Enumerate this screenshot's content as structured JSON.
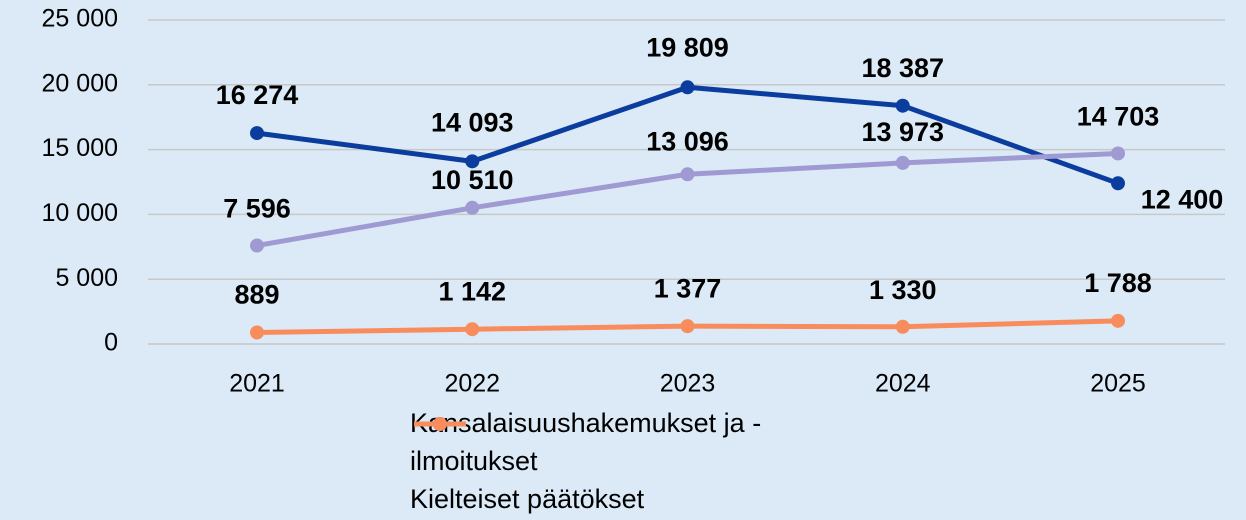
{
  "chart_data": {
    "type": "line",
    "categories": [
      "2021",
      "2022",
      "2023",
      "2024",
      "2025"
    ],
    "series": [
      {
        "name": "Kansalaisuushakemukset ja -ilmoitukset",
        "color": "#0b3d9e",
        "values": [
          16274,
          14093,
          19809,
          18387,
          12400
        ],
        "value_labels": [
          "16 274",
          "14 093",
          "19 809",
          "18 387",
          "12 400"
        ]
      },
      {
        "color": "#a09ad3",
        "values": [
          7596,
          10510,
          13096,
          13973,
          14703
        ],
        "value_labels": [
          "7 596",
          "10 510",
          "13 096",
          "13 973",
          "14 703"
        ]
      },
      {
        "name": "Kielteiset päätökset",
        "color": "#f98c5c",
        "values": [
          889,
          1142,
          1377,
          1330,
          1788
        ],
        "value_labels": [
          "889",
          "1 142",
          "1 377",
          "1 330",
          "1 788"
        ]
      }
    ],
    "ylim": [
      0,
      25000
    ],
    "yticks": [
      0,
      {
        "value": 5000,
        "label": "5 000"
      },
      {
        "value": 10000,
        "label": "10 000"
      },
      {
        "value": 15000,
        "label": "15 000"
      },
      {
        "value": 20000,
        "label": "20 000"
      },
      {
        "value": 25000,
        "label": "25 000"
      }
    ],
    "grid": true
  }
}
